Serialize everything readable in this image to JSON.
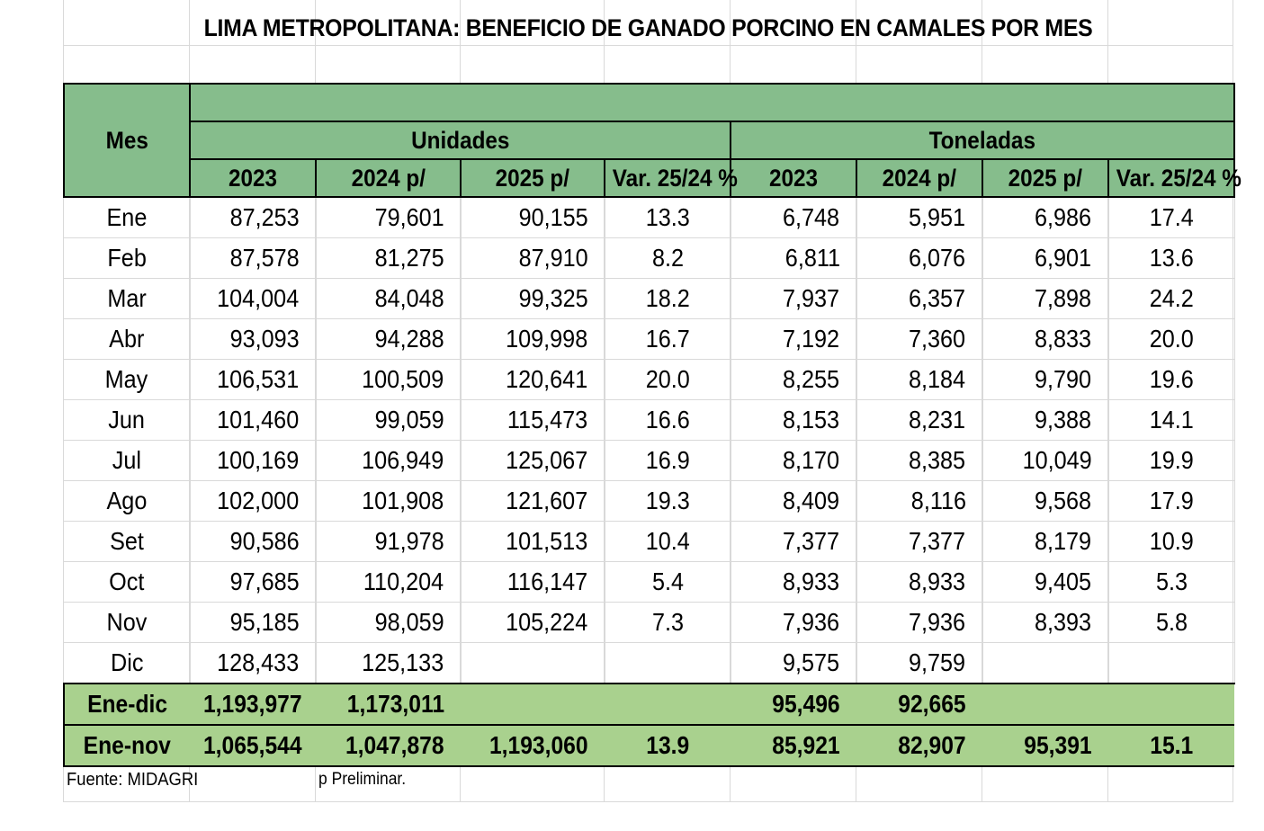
{
  "title": "LIMA METROPOLITANA: BENEFICIO DE GANADO PORCINO EN CAMALES POR MES",
  "headers": {
    "mes": "Mes",
    "group_unidades": "Unidades",
    "group_toneladas": "Toneladas",
    "years": [
      "2023",
      "2024 p/",
      "2025 p/",
      "Var. 25/24 %",
      "2023",
      "2024 p/",
      "2025 p/",
      "Var. 25/24 %"
    ]
  },
  "rows": [
    {
      "mes": "Ene",
      "u23": "87,253",
      "u24": "79,601",
      "u25": "90,155",
      "uvar": "13.3",
      "t23": "6,748",
      "t24": "5,951",
      "t25": "6,986",
      "tvar": "17.4"
    },
    {
      "mes": "Feb",
      "u23": "87,578",
      "u24": "81,275",
      "u25": "87,910",
      "uvar": "8.2",
      "t23": "6,811",
      "t24": "6,076",
      "t25": "6,901",
      "tvar": "13.6"
    },
    {
      "mes": "Mar",
      "u23": "104,004",
      "u24": "84,048",
      "u25": "99,325",
      "uvar": "18.2",
      "t23": "7,937",
      "t24": "6,357",
      "t25": "7,898",
      "tvar": "24.2"
    },
    {
      "mes": "Abr",
      "u23": "93,093",
      "u24": "94,288",
      "u25": "109,998",
      "uvar": "16.7",
      "t23": "7,192",
      "t24": "7,360",
      "t25": "8,833",
      "tvar": "20.0"
    },
    {
      "mes": "May",
      "u23": "106,531",
      "u24": "100,509",
      "u25": "120,641",
      "uvar": "20.0",
      "t23": "8,255",
      "t24": "8,184",
      "t25": "9,790",
      "tvar": "19.6"
    },
    {
      "mes": "Jun",
      "u23": "101,460",
      "u24": "99,059",
      "u25": "115,473",
      "uvar": "16.6",
      "t23": "8,153",
      "t24": "8,231",
      "t25": "9,388",
      "tvar": "14.1"
    },
    {
      "mes": "Jul",
      "u23": "100,169",
      "u24": "106,949",
      "u25": "125,067",
      "uvar": "16.9",
      "t23": "8,170",
      "t24": "8,385",
      "t25": "10,049",
      "tvar": "19.9"
    },
    {
      "mes": "Ago",
      "u23": "102,000",
      "u24": "101,908",
      "u25": "121,607",
      "uvar": "19.3",
      "t23": "8,409",
      "t24": "8,116",
      "t25": "9,568",
      "tvar": "17.9"
    },
    {
      "mes": "Set",
      "u23": "90,586",
      "u24": "91,978",
      "u25": "101,513",
      "uvar": "10.4",
      "t23": "7,377",
      "t24": "7,377",
      "t25": "8,179",
      "tvar": "10.9"
    },
    {
      "mes": "Oct",
      "u23": "97,685",
      "u24": "110,204",
      "u25": "116,147",
      "uvar": "5.4",
      "t23": "8,933",
      "t24": "8,933",
      "t25": "9,405",
      "tvar": "5.3"
    },
    {
      "mes": "Nov",
      "u23": "95,185",
      "u24": "98,059",
      "u25": "105,224",
      "uvar": "7.3",
      "t23": "7,936",
      "t24": "7,936",
      "t25": "8,393",
      "tvar": "5.8"
    },
    {
      "mes": "Dic",
      "u23": "128,433",
      "u24": "125,133",
      "u25": "",
      "uvar": "",
      "t23": "9,575",
      "t24": "9,759",
      "t25": "",
      "tvar": ""
    }
  ],
  "totals": [
    {
      "mes": "Ene-dic",
      "u23": "1,193,977",
      "u24": "1,173,011",
      "u25": "",
      "uvar": "",
      "t23": "95,496",
      "t24": "92,665",
      "t25": "",
      "tvar": ""
    },
    {
      "mes": "Ene-nov",
      "u23": "1,065,544",
      "u24": "1,047,878",
      "u25": "1,193,060",
      "uvar": "13.9",
      "t23": "85,921",
      "t24": "82,907",
      "t25": "95,391",
      "tvar": "15.1"
    }
  ],
  "footer": {
    "source": "Fuente: MIDAGRI",
    "note": "p Preliminar."
  },
  "colors": {
    "header_green": "#86bd8c",
    "total_green": "#a9d18e",
    "grid": "#d9d9d9"
  }
}
